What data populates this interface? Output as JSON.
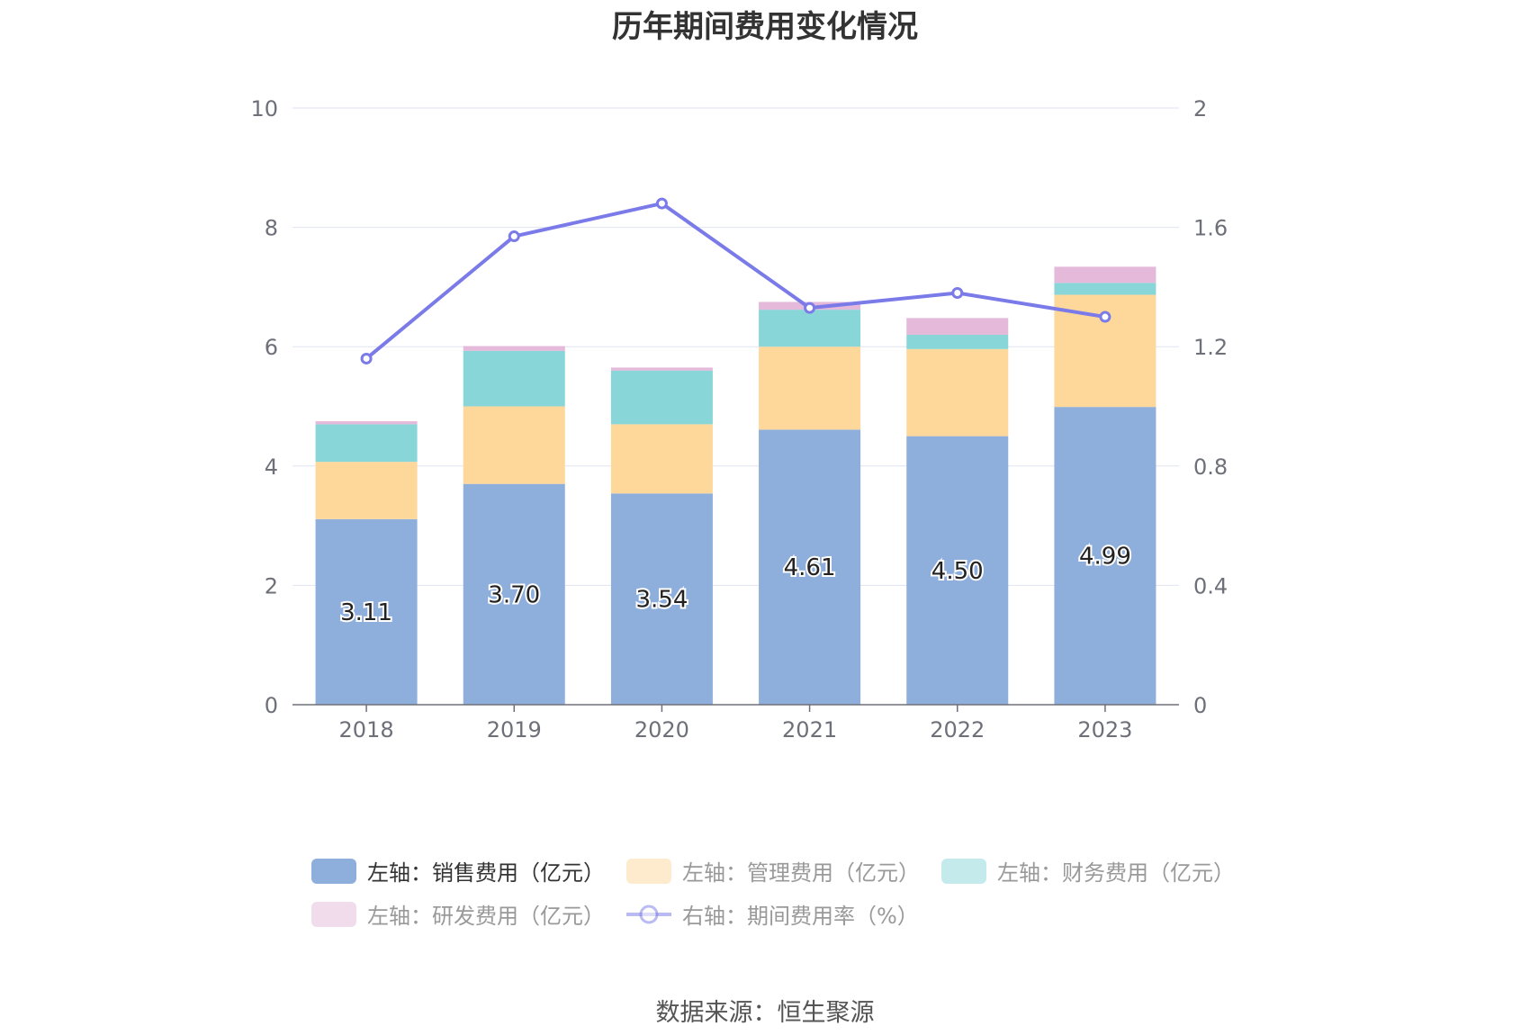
{
  "title": "历年期间费用变化情况",
  "source": "数据来源：恒生聚源",
  "chart_data": {
    "type": "bar",
    "stacked": true,
    "categories": [
      "2018",
      "2019",
      "2020",
      "2021",
      "2022",
      "2023"
    ],
    "left_axis": {
      "min": 0,
      "max": 10,
      "ticks": [
        "0",
        "2",
        "4",
        "6",
        "8",
        "10"
      ]
    },
    "right_axis": {
      "min": 0,
      "max": 2,
      "ticks": [
        "0",
        "0.4",
        "0.8",
        "1.2",
        "1.6",
        "2"
      ]
    },
    "series": [
      {
        "name": "左轴：销售费用（亿元）",
        "kind": "bar",
        "color": "#8eaedb",
        "values": [
          3.11,
          3.7,
          3.54,
          4.61,
          4.5,
          4.99
        ],
        "labels": [
          "3.11",
          "3.70",
          "3.54",
          "4.61",
          "4.50",
          "4.99"
        ]
      },
      {
        "name": "左轴：管理费用（亿元）",
        "kind": "bar",
        "color": "#fed89b",
        "values": [
          0.96,
          1.3,
          1.16,
          1.39,
          1.46,
          1.88
        ]
      },
      {
        "name": "左轴：财务费用（亿元）",
        "kind": "bar",
        "color": "#89d6d9",
        "values": [
          0.63,
          0.93,
          0.9,
          0.62,
          0.24,
          0.2
        ]
      },
      {
        "name": "左轴：研发费用（亿元）",
        "kind": "bar",
        "color": "#e4b9da",
        "values": [
          0.05,
          0.08,
          0.05,
          0.13,
          0.28,
          0.27
        ]
      },
      {
        "name": "右轴：期间费用率（%）",
        "kind": "line",
        "color": "#7a7ae8",
        "values": [
          1.16,
          1.57,
          1.68,
          1.33,
          1.38,
          1.3
        ]
      }
    ],
    "legend_position": "bottom"
  }
}
